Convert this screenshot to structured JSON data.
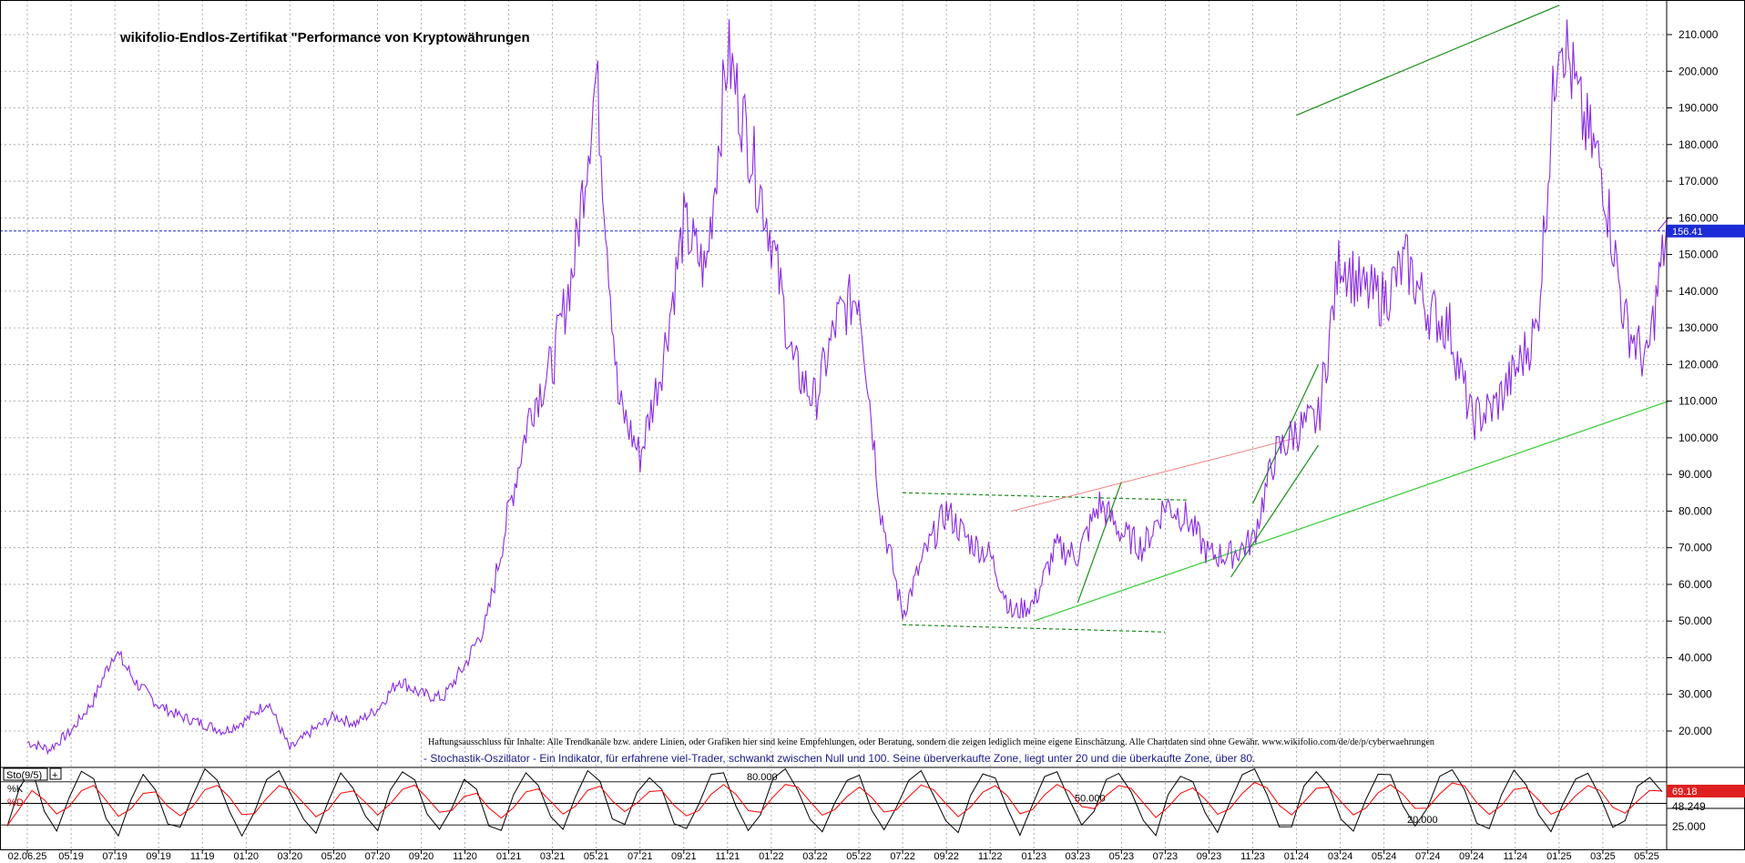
{
  "chart_data": {
    "type": "line",
    "title": "wikifolio-Endlos-Zertifikat \"Performance von Kryptowährungen",
    "disclaimer": "Haftungsausschluss für Inhalte: Alle Trendkanäle bzw. andere Linien, oder Grafiken hier sind keine Empfehlungen, oder Beratung, sondern die zeigen lediglich meine eigene Einschätzung. Alle Chartdaten sind ohne Gewähr. www.wikifolio.com/de/de/p/cyberwaehrungen",
    "indicator_description": "- Stochastik-Oszillator - Ein Indikator, für erfahrene viel-Trader, schwankt zwischen Null und 100. Seine überverkaufte Zone, liegt unter 20 und die überkaufte Zone, über 80.",
    "ylim": [
      10,
      220
    ],
    "y_ticks": [
      "20.000",
      "30.000",
      "40.000",
      "50.000",
      "60.000",
      "70.000",
      "80.000",
      "90.000",
      "100.000",
      "110.000",
      "120.000",
      "130.000",
      "140.000",
      "150.000",
      "160.000",
      "170.000",
      "180.000",
      "190.000",
      "200.000",
      "210.000"
    ],
    "x_ticks": [
      "02.06.25",
      "05.19",
      "07.19",
      "09.19",
      "11.19",
      "01.20",
      "03.20",
      "05.20",
      "07.20",
      "09.20",
      "11.20",
      "01.21",
      "03.21",
      "05.21",
      "07.21",
      "09.21",
      "11.21",
      "01.22",
      "03.22",
      "05.22",
      "07.22",
      "09.22",
      "11.22",
      "01.23",
      "03.23",
      "05.23",
      "07.23",
      "09.23",
      "11.23",
      "01.24",
      "03.24",
      "05.24",
      "07.24",
      "09.24",
      "11.24",
      "01.25",
      "03.25",
      "05.25"
    ],
    "current_value": 156.41,
    "current_value_label": "156.41",
    "grid": true,
    "series": [
      {
        "color": "#8a2be2",
        "x": [
          "2019-03",
          "2019-04",
          "2019-05",
          "2019-06",
          "2019-07",
          "2019-08",
          "2019-09",
          "2019-10",
          "2019-11",
          "2019-12",
          "2020-01",
          "2020-02",
          "2020-03",
          "2020-04",
          "2020-05",
          "2020-06",
          "2020-07",
          "2020-08",
          "2020-09",
          "2020-10",
          "2020-11",
          "2020-12",
          "2021-01",
          "2021-02",
          "2021-03",
          "2021-04",
          "2021-05",
          "2021-06",
          "2021-07",
          "2021-08",
          "2021-09",
          "2021-10",
          "2021-11",
          "2021-12",
          "2022-01",
          "2022-02",
          "2022-03",
          "2022-04",
          "2022-05",
          "2022-06",
          "2022-07",
          "2022-08",
          "2022-09",
          "2022-10",
          "2022-11",
          "2022-12",
          "2023-01",
          "2023-02",
          "2023-03",
          "2023-04",
          "2023-05",
          "2023-06",
          "2023-07",
          "2023-08",
          "2023-09",
          "2023-10",
          "2023-11",
          "2023-12",
          "2024-01",
          "2024-02",
          "2024-03",
          "2024-04",
          "2024-05",
          "2024-06",
          "2024-07",
          "2024-08",
          "2024-09",
          "2024-10",
          "2024-11",
          "2024-12",
          "2025-01",
          "2025-02",
          "2025-03",
          "2025-04",
          "2025-05",
          "2025-06"
        ],
        "y": [
          17,
          15,
          20,
          28,
          42,
          33,
          27,
          24,
          22,
          20,
          23,
          28,
          15,
          20,
          24,
          22,
          26,
          34,
          30,
          29,
          38,
          50,
          80,
          108,
          120,
          148,
          199,
          110,
          95,
          120,
          158,
          145,
          205,
          180,
          155,
          120,
          110,
          132,
          140,
          80,
          52,
          68,
          80,
          72,
          68,
          52,
          55,
          70,
          68,
          82,
          74,
          70,
          82,
          78,
          68,
          68,
          72,
          95,
          102,
          105,
          150,
          140,
          138,
          148,
          135,
          130,
          105,
          108,
          118,
          130,
          215,
          188,
          172,
          132,
          120,
          160
        ]
      }
    ],
    "trendlines_green": [
      [
        [
          "2024-01",
          188
        ],
        [
          "2025-01",
          218
        ]
      ],
      [
        [
          "2023-01",
          50
        ],
        [
          "2025-06",
          110
        ]
      ],
      [
        [
          "2022-07",
          49
        ],
        [
          "2023-07",
          47
        ]
      ],
      [
        [
          "2022-07",
          85
        ],
        [
          "2023-08",
          83
        ]
      ],
      [
        [
          "2023-11",
          82
        ],
        [
          "2024-02",
          120
        ]
      ],
      [
        [
          "2023-10",
          62
        ],
        [
          "2024-02",
          98
        ]
      ],
      [
        [
          "2023-03",
          55
        ],
        [
          "2023-05",
          88
        ]
      ]
    ],
    "trendline_red": [
      [
        "2022-12",
        80
      ],
      [
        "2024-01",
        100
      ]
    ],
    "stochastic": {
      "label": "Sto(9/5)",
      "k_label": "%K",
      "d_label": "%D",
      "k_value_label": "69.18",
      "d_value_label": "48.249",
      "level_high_label": "80.000",
      "level_mid_label": "50.000",
      "level_low_label": "20.000",
      "level_25_label": "25.000",
      "k_color": "#000000",
      "d_color": "#ff0000",
      "k_values": [
        20,
        75,
        95,
        40,
        10,
        60,
        90,
        85,
        30,
        5,
        50,
        88,
        70,
        20,
        15,
        65,
        95,
        80,
        35,
        8,
        40,
        85,
        92,
        60,
        25,
        10,
        55,
        90,
        75,
        30,
        12,
        68,
        96,
        82,
        40,
        15,
        45,
        88,
        70,
        22,
        8,
        58,
        92,
        78,
        35,
        10,
        62,
        94,
        80,
        30,
        18,
        70,
        90,
        65,
        20,
        12,
        48,
        86,
        88,
        50,
        15,
        30,
        80,
        95,
        72,
        28,
        10,
        55,
        85,
        90,
        45,
        14,
        40,
        82,
        94,
        60,
        22,
        12,
        58,
        90,
        84,
        38,
        10,
        50,
        88,
        92,
        55,
        18,
        35,
        80,
        95,
        70,
        25,
        8,
        60,
        90,
        82,
        40,
        12,
        48,
        86,
        94,
        65,
        20,
        15,
        70,
        92,
        78,
        30,
        10,
        55,
        88,
        90,
        50,
        16,
        42,
        85,
        95,
        68,
        22,
        10,
        60,
        92,
        80,
        35,
        12,
        52,
        88,
        94,
        62,
        20,
        30,
        78,
        90,
        69
      ]
    }
  }
}
